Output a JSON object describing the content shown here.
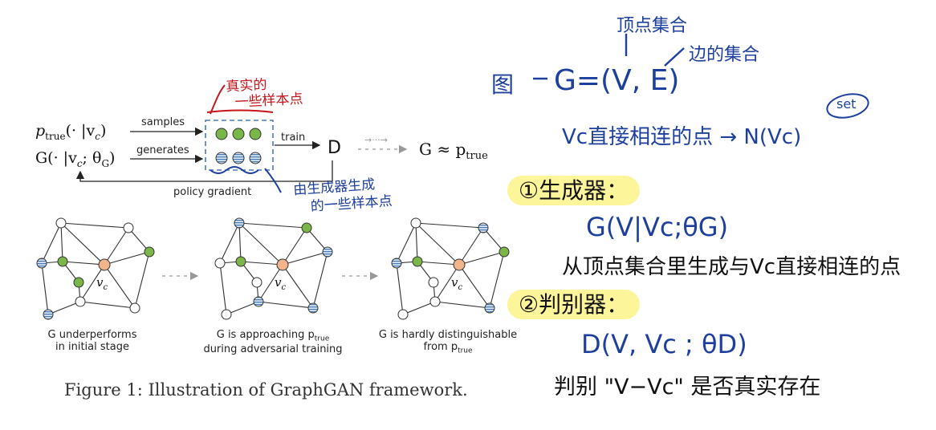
{
  "figure": {
    "inputs": {
      "ptrue": "p",
      "ptrue_sub": "true",
      "ptrue_args": "(· |v",
      "ptrue_args_sub": "c",
      "ptrue_args_end": ")",
      "generator": "G(· |v",
      "generator_sub": "c",
      "generator_end": "; θ",
      "generator_sub2": "G",
      "generator_close": ")"
    },
    "labels": {
      "samples": "samples",
      "generates": "generates",
      "train": "train",
      "discriminator": "D",
      "dots_arrow": "→···→",
      "result": "G ≈ p",
      "result_sub": "true",
      "policy_gradient": "policy gradient"
    },
    "graph_center": "v",
    "graph_center_sub": "c",
    "stage_captions": [
      {
        "line1": "G underperforms",
        "line2": "in initial stage"
      },
      {
        "line1": "G is approaching p",
        "line1_sub": "true",
        "line2": "during adversarial training"
      },
      {
        "line1": "G is hardly distinguishable",
        "line2": "from p",
        "line2_sub": "true"
      }
    ],
    "caption": "Figure 1: Illustration of GraphGAN framework."
  },
  "annotations": {
    "red_note_line1": "真实的",
    "red_note_line2": "一些样本点",
    "blue_note_line1": "由生成器生成",
    "blue_note_line2": "的一些样本点",
    "vertex_set": "顶点集合",
    "edge_set": "边的集合",
    "graph_label": "图",
    "graph_def": "G=(V, E)",
    "neighbors": "Vc直接相连的点 → N(Vc)",
    "set_circle": "set",
    "generator_title": "①生成器：",
    "generator_formula": "G(V|Vc;θG)",
    "generator_desc": "从顶点集合里生成与Vc直接相连的点",
    "discriminator_title": "②判别器：",
    "discriminator_formula": "D(V, Vc ; θD)",
    "discriminator_desc": "判别 \"V−Vc\" 是否真实存在"
  },
  "colors": {
    "green_node": "#7ab648",
    "blue_node": "#4a7bb5",
    "center_node": "#f2b48a",
    "ink_blue": "#1d3f9e",
    "ink_red": "#c4161c",
    "highlight": "#fdf59a"
  }
}
